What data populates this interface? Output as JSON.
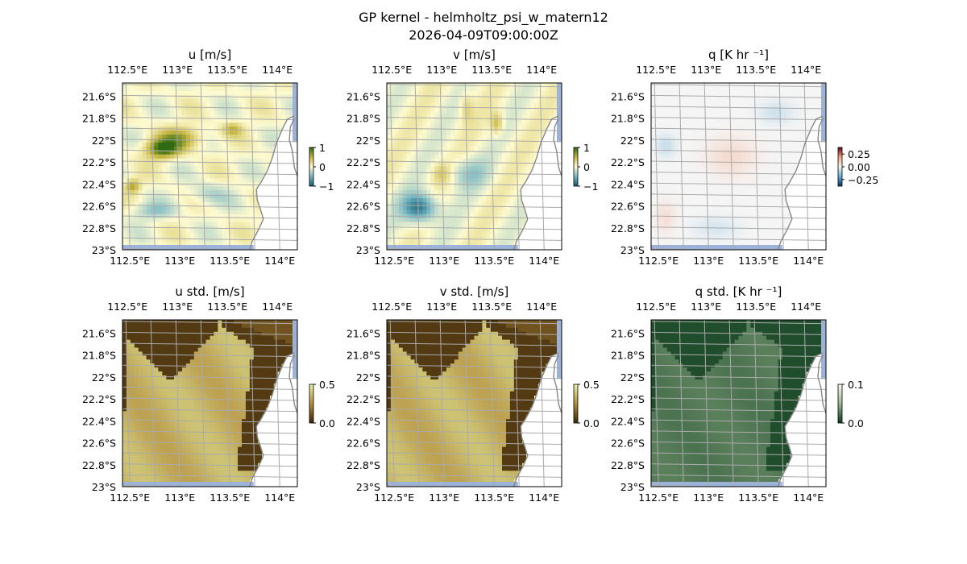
{
  "figure": {
    "title": "GP kernel - helmholtz_psi_w_matern12",
    "subtitle": "2026-04-09T09:00:00Z"
  },
  "chart_data": [
    {
      "type": "heatmap",
      "title": "u [m/s]",
      "lon_ticks": [
        "112.5°E",
        "113°E",
        "113.5°E",
        "114°E"
      ],
      "lat_ticks": [
        "21.6°S",
        "21.8°S",
        "22°S",
        "22.2°S",
        "22.4°S",
        "22.6°S",
        "22.8°S",
        "23°S"
      ],
      "colorbar": {
        "ticks": [
          "1",
          "0",
          "−1"
        ],
        "range": [
          -1,
          1
        ],
        "colors": [
          "#0d5c73",
          "#79b8c4",
          "#fffbd0",
          "#c7b643",
          "#2e6b10"
        ]
      },
      "ocean_color": "#fffcd0"
    },
    {
      "type": "heatmap",
      "title": "v [m/s]",
      "lon_ticks": [
        "112.5°E",
        "113°E",
        "113.5°E",
        "114°E"
      ],
      "lat_ticks": [
        "21.6°S",
        "21.8°S",
        "22°S",
        "22.2°S",
        "22.4°S",
        "22.6°S",
        "22.8°S",
        "23°S"
      ],
      "colorbar": {
        "ticks": [
          "1",
          "0",
          "−1"
        ],
        "range": [
          -1,
          1
        ],
        "colors": [
          "#0d5c73",
          "#79b8c4",
          "#fffbd0",
          "#c7b643",
          "#2e6b10"
        ]
      },
      "ocean_color": "#fffcd0"
    },
    {
      "type": "heatmap",
      "title": "q [K hr ⁻¹]",
      "lon_ticks": [
        "112.5°E",
        "113°E",
        "113.5°E",
        "114°E"
      ],
      "lat_ticks": [
        "21.6°S",
        "21.8°S",
        "22°S",
        "22.2°S",
        "22.4°S",
        "22.6°S",
        "22.8°S",
        "23°S"
      ],
      "colorbar": {
        "ticks": [
          "0.25",
          "0.00",
          "−0.25"
        ],
        "range": [
          -0.35,
          0.35
        ],
        "colors": [
          "#08306b",
          "#6aaed6",
          "#f5f5f5",
          "#f4a582",
          "#67001f"
        ]
      },
      "ocean_color": "#f4f4f4"
    },
    {
      "type": "heatmap",
      "title": "u std. [m/s]",
      "lon_ticks": [
        "112.5°E",
        "113°E",
        "113.5°E",
        "114°E"
      ],
      "lat_ticks": [
        "21.6°S",
        "21.8°S",
        "22°S",
        "22.2°S",
        "22.4°S",
        "22.6°S",
        "22.8°S",
        "23°S"
      ],
      "colorbar": {
        "ticks": [
          "0.5",
          "0.0"
        ],
        "range": [
          0,
          0.5
        ],
        "colors": [
          "#3b2508",
          "#b38d3d",
          "#e6f5a8"
        ]
      },
      "ocean_color": "#e6f5aa"
    },
    {
      "type": "heatmap",
      "title": "v std. [m/s]",
      "lon_ticks": [
        "112.5°E",
        "113°E",
        "113.5°E",
        "114°E"
      ],
      "lat_ticks": [
        "21.6°S",
        "21.8°S",
        "22°S",
        "22.2°S",
        "22.4°S",
        "22.6°S",
        "22.8°S",
        "23°S"
      ],
      "colorbar": {
        "ticks": [
          "0.5",
          "0.0"
        ],
        "range": [
          0,
          0.5
        ],
        "colors": [
          "#3b2508",
          "#b38d3d",
          "#e6f5a8"
        ]
      },
      "ocean_color": "#e6f5aa"
    },
    {
      "type": "heatmap",
      "title": "q std. [K hr ⁻¹]",
      "lon_ticks": [
        "112.5°E",
        "113°E",
        "113.5°E",
        "114°E"
      ],
      "lat_ticks": [
        "21.6°S",
        "21.8°S",
        "22°S",
        "22.2°S",
        "22.4°S",
        "22.6°S",
        "22.8°S",
        "23°S"
      ],
      "colorbar": {
        "ticks": [
          "0.1",
          "0.0"
        ],
        "range": [
          0,
          0.1
        ],
        "colors": [
          "#0b3d1c",
          "#9fb892",
          "#fff5f0"
        ]
      },
      "ocean_color": "#fff4f2"
    }
  ]
}
